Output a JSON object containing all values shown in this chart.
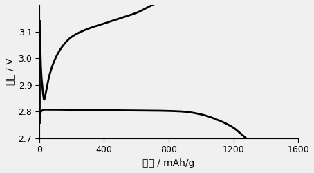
{
  "xlabel": "容量 / mAh/g",
  "ylabel": "电压 / V",
  "xlim": [
    0,
    1600
  ],
  "ylim": [
    2.7,
    3.2
  ],
  "yticks": [
    2.7,
    2.8,
    2.9,
    3.0,
    3.1
  ],
  "xticks": [
    0,
    400,
    800,
    1200,
    1600
  ],
  "bg_color": "#f0f0f0",
  "plot_bg": "#f0f0f0",
  "line_color": "#000000",
  "line_width": 2.0,
  "figsize": [
    4.54,
    2.5
  ],
  "dpi": 100,
  "charge_points_x": [
    0,
    2,
    5,
    10,
    15,
    20,
    25,
    30,
    40,
    60,
    100,
    150,
    200,
    300,
    400,
    500,
    600,
    700,
    800,
    900,
    1000,
    1100,
    1200,
    1280
  ],
  "charge_points_v": [
    3.14,
    3.12,
    3.08,
    2.97,
    2.92,
    2.89,
    2.86,
    2.845,
    2.87,
    2.93,
    3.0,
    3.05,
    3.08,
    3.11,
    3.13,
    3.15,
    3.17,
    3.2,
    3.23,
    3.26,
    3.28,
    3.3,
    3.32,
    3.35
  ],
  "discharge_points_x": [
    0,
    2,
    5,
    10,
    20,
    30,
    50,
    100,
    200,
    400,
    600,
    800,
    900,
    1000,
    1100,
    1200,
    1250,
    1280
  ],
  "discharge_points_v": [
    2.76,
    2.775,
    2.79,
    2.8,
    2.805,
    2.808,
    2.808,
    2.808,
    2.807,
    2.806,
    2.805,
    2.803,
    2.8,
    2.79,
    2.77,
    2.74,
    2.715,
    2.7
  ]
}
